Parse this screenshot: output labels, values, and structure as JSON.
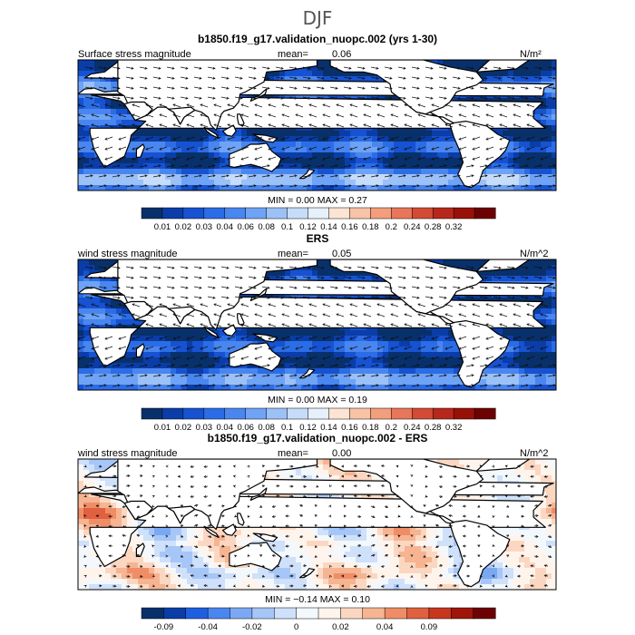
{
  "figure": {
    "title": "DJF"
  },
  "colorbars": {
    "abs": {
      "colors": [
        "#08306b",
        "#0a3da8",
        "#1652d1",
        "#2b6de6",
        "#4a86ef",
        "#6fa3f5",
        "#9cc1f7",
        "#c6dcf8",
        "#e6f0fa",
        "#fde3d4",
        "#f8c3a6",
        "#f39e7c",
        "#e8765a",
        "#d34b35",
        "#b8271c",
        "#981109",
        "#6d0202"
      ],
      "tick_labels": [
        "0.01",
        "0.02",
        "0.03",
        "0.04",
        "0.06",
        "0.08",
        "0.1",
        "0.12",
        "0.14",
        "0.16",
        "0.18",
        "0.2",
        "0.24",
        "0.28",
        "0.32"
      ],
      "tick_positions": [
        1,
        2,
        3,
        4,
        5,
        6,
        7,
        8,
        9,
        10,
        11,
        12,
        13,
        14,
        15
      ]
    },
    "diff": {
      "colors": [
        "#08306b",
        "#0a3da8",
        "#1e5fe0",
        "#4a86ef",
        "#7aa8f3",
        "#a6c6f7",
        "#cfe0fa",
        "#f3f8fd",
        "#fff4ec",
        "#fbd7c1",
        "#f6b491",
        "#ef8d66",
        "#e0603f",
        "#c7371e",
        "#a1140a",
        "#6d0202"
      ],
      "tick_labels": [
        "-0.09",
        "-0.04",
        "-0.02",
        "0",
        "0.02",
        "0.04",
        "0.09"
      ],
      "tick_positions": [
        1,
        3,
        5,
        7,
        9,
        11,
        13
      ]
    }
  },
  "panels": [
    {
      "title": "b1850.f19_g17.validation_nuopc.002 (yrs 1-30)",
      "left_label": "Surface stress magnitude",
      "mean_label": "mean=",
      "mean_value": "0.06",
      "units": "N/m²",
      "minmax": "MIN =    0.00  MAX =    0.27",
      "colorbar": "abs",
      "field": "abs1"
    },
    {
      "title": "ERS",
      "left_label": "wind stress magnitude",
      "mean_label": "mean=",
      "mean_value": "0.05",
      "units": "N/m^2",
      "minmax": "MIN =    0.00  MAX =    0.19",
      "colorbar": "abs",
      "field": "abs2"
    },
    {
      "title": "b1850.f19_g17.validation_nuopc.002 - ERS",
      "left_label": "wind stress magnitude",
      "mean_label": "mean=",
      "mean_value": "0.00",
      "units": "N/m^2",
      "minmax": "MIN =  −0.14  MAX =    0.10",
      "colorbar": "diff",
      "field": "diff"
    }
  ],
  "chart_data": [
    {
      "type": "heatmap",
      "title": "b1850.f19_g17.validation_nuopc.002 (yrs 1-30)",
      "variable": "Surface stress magnitude",
      "units": "N/m²",
      "season": "DJF",
      "mean": 0.06,
      "min": 0.0,
      "max": 0.27,
      "color_levels": [
        0.01,
        0.02,
        0.03,
        0.04,
        0.06,
        0.08,
        0.1,
        0.12,
        0.14,
        0.16,
        0.18,
        0.2,
        0.24,
        0.28,
        0.32
      ],
      "vector_overlay": true
    },
    {
      "type": "heatmap",
      "title": "ERS",
      "variable": "wind stress magnitude",
      "units": "N/m^2",
      "season": "DJF",
      "mean": 0.05,
      "min": 0.0,
      "max": 0.19,
      "color_levels": [
        0.01,
        0.02,
        0.03,
        0.04,
        0.06,
        0.08,
        0.1,
        0.12,
        0.14,
        0.16,
        0.18,
        0.2,
        0.24,
        0.28,
        0.32
      ],
      "vector_overlay": true
    },
    {
      "type": "heatmap",
      "title": "b1850.f19_g17.validation_nuopc.002 - ERS",
      "variable": "wind stress magnitude",
      "units": "N/m^2",
      "season": "DJF",
      "mean": 0.0,
      "min": -0.14,
      "max": 0.1,
      "color_levels": [
        -0.09,
        -0.04,
        -0.02,
        0,
        0.02,
        0.04,
        0.09
      ],
      "vector_overlay": true
    }
  ]
}
